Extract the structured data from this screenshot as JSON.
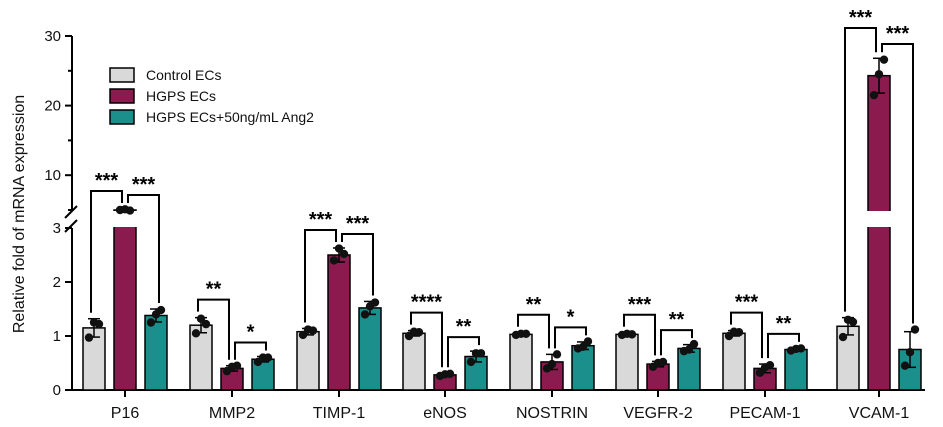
{
  "chart_data": {
    "type": "bar",
    "ylabel": "Relative fold of mRNA expression",
    "xlabel": "",
    "y_axis_break": true,
    "ylim_lower": [
      0,
      3
    ],
    "ylim_upper": [
      5,
      30
    ],
    "yticks_lower": [
      "0",
      "1",
      "2",
      "3"
    ],
    "yticks_upper": [
      "10",
      "20",
      "30"
    ],
    "legend_position": "top-left",
    "categories": [
      "P16",
      "MMP2",
      "TIMP-1",
      "eNOS",
      "NOSTRIN",
      "VEGFR-2",
      "PECAM-1",
      "VCAM-1"
    ],
    "series": [
      {
        "name": "Control ECs",
        "color": "#d9d9d9",
        "values": [
          1.15,
          1.2,
          1.08,
          1.05,
          1.03,
          1.03,
          1.05,
          1.18
        ],
        "errors": [
          0.17,
          0.14,
          0.06,
          0.05,
          0.03,
          0.03,
          0.05,
          0.16
        ],
        "points": [
          [
            0.97,
            1.25,
            1.22
          ],
          [
            1.05,
            1.32,
            1.22
          ],
          [
            1.02,
            1.12,
            1.1
          ],
          [
            1.0,
            1.08,
            1.07
          ],
          [
            1.02,
            1.04,
            1.04
          ],
          [
            1.02,
            1.04,
            1.03
          ],
          [
            1.0,
            1.08,
            1.07
          ],
          [
            0.98,
            1.3,
            1.26
          ]
        ]
      },
      {
        "name": "HGPS ECs",
        "color": "#8b1b4e",
        "values": [
          5.0,
          0.4,
          2.5,
          0.28,
          0.52,
          0.48,
          0.4,
          24.3
        ],
        "errors": [
          0.15,
          0.05,
          0.13,
          0.03,
          0.14,
          0.05,
          0.08,
          2.5
        ],
        "points": [
          [
            5.0,
            5.1,
            4.92
          ],
          [
            0.35,
            0.43,
            0.45
          ],
          [
            2.4,
            2.62,
            2.52
          ],
          [
            0.26,
            0.29,
            0.3
          ],
          [
            0.4,
            0.48,
            0.66
          ],
          [
            0.43,
            0.5,
            0.52
          ],
          [
            0.32,
            0.42,
            0.46
          ],
          [
            21.5,
            24.5,
            26.6
          ]
        ]
      },
      {
        "name": "HGPS ECs+50ng/mL Ang2",
        "color": "#1b8f8b",
        "values": [
          1.38,
          0.57,
          1.52,
          0.62,
          0.82,
          0.77,
          0.75,
          0.75
        ],
        "errors": [
          0.12,
          0.05,
          0.12,
          0.1,
          0.07,
          0.07,
          0.03,
          0.33
        ],
        "points": [
          [
            1.25,
            1.4,
            1.48
          ],
          [
            0.52,
            0.6,
            0.6
          ],
          [
            1.4,
            1.55,
            1.62
          ],
          [
            0.52,
            0.68,
            0.68
          ],
          [
            0.77,
            0.8,
            0.9
          ],
          [
            0.72,
            0.75,
            0.85
          ],
          [
            0.73,
            0.76,
            0.77
          ],
          [
            0.45,
            0.7,
            1.12
          ]
        ]
      }
    ],
    "significance": [
      {
        "left": "***",
        "right": "***"
      },
      {
        "left": "**",
        "right": "*"
      },
      {
        "left": "***",
        "right": "***"
      },
      {
        "left": "****",
        "right": "**"
      },
      {
        "left": "**",
        "right": "*"
      },
      {
        "left": "***",
        "right": "**"
      },
      {
        "left": "***",
        "right": "**"
      },
      {
        "left": "***",
        "right": "***"
      }
    ]
  }
}
